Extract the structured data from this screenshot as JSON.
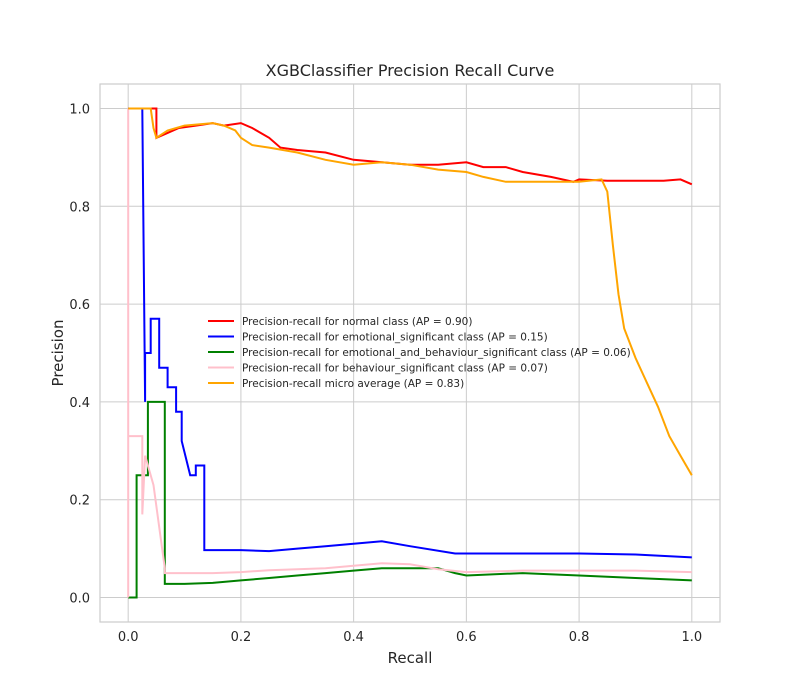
{
  "chart_data": {
    "type": "line",
    "title": "XGBClassifier Precision Recall Curve",
    "xlabel": "Recall",
    "ylabel": "Precision",
    "xlim": [
      -0.05,
      1.05
    ],
    "ylim": [
      -0.05,
      1.05
    ],
    "xticks": [
      "0.0",
      "0.2",
      "0.4",
      "0.6",
      "0.8",
      "1.0"
    ],
    "yticks": [
      "0.0",
      "0.2",
      "0.4",
      "0.6",
      "0.8",
      "1.0"
    ],
    "grid": true,
    "legend_position": "center",
    "series": [
      {
        "name": "Precision-recall for normal class (AP = 0.90)",
        "color": "#ff0000",
        "x": [
          0,
          0.05,
          0.05,
          0.07,
          0.09,
          0.12,
          0.15,
          0.17,
          0.2,
          0.22,
          0.25,
          0.27,
          0.3,
          0.35,
          0.4,
          0.45,
          0.5,
          0.55,
          0.6,
          0.63,
          0.67,
          0.7,
          0.75,
          0.79,
          0.8,
          0.85,
          0.9,
          0.95,
          0.98,
          1.0
        ],
        "y": [
          1.0,
          1.0,
          0.94,
          0.95,
          0.96,
          0.965,
          0.97,
          0.965,
          0.97,
          0.96,
          0.94,
          0.92,
          0.915,
          0.91,
          0.895,
          0.89,
          0.885,
          0.885,
          0.89,
          0.88,
          0.88,
          0.87,
          0.86,
          0.85,
          0.855,
          0.852,
          0.852,
          0.852,
          0.855,
          0.845
        ]
      },
      {
        "name": "Precision-recall for emotional_significant class (AP = 0.15)",
        "color": "#0000ff",
        "x": [
          0,
          0.025,
          0.03,
          0.03,
          0.04,
          0.04,
          0.055,
          0.055,
          0.07,
          0.07,
          0.085,
          0.085,
          0.095,
          0.095,
          0.11,
          0.12,
          0.12,
          0.135,
          0.135,
          0.2,
          0.25,
          0.3,
          0.35,
          0.4,
          0.45,
          0.5,
          0.58,
          0.6,
          0.7,
          0.8,
          0.9,
          1.0
        ],
        "y": [
          1.0,
          1.0,
          0.4,
          0.5,
          0.5,
          0.57,
          0.57,
          0.47,
          0.47,
          0.43,
          0.43,
          0.38,
          0.38,
          0.32,
          0.25,
          0.25,
          0.27,
          0.27,
          0.097,
          0.097,
          0.095,
          0.1,
          0.105,
          0.11,
          0.115,
          0.105,
          0.09,
          0.09,
          0.09,
          0.09,
          0.088,
          0.082
        ]
      },
      {
        "name": "Precision-recall for emotional_and_behaviour_significant class (AP = 0.06)",
        "color": "#008000",
        "x": [
          0,
          0.015,
          0.015,
          0.035,
          0.035,
          0.065,
          0.065,
          0.1,
          0.15,
          0.2,
          0.25,
          0.3,
          0.35,
          0.4,
          0.45,
          0.5,
          0.55,
          0.58,
          0.6,
          0.7,
          0.8,
          0.9,
          1.0
        ],
        "y": [
          0.0,
          0.0,
          0.25,
          0.25,
          0.4,
          0.4,
          0.028,
          0.028,
          0.03,
          0.035,
          0.04,
          0.045,
          0.05,
          0.055,
          0.06,
          0.06,
          0.06,
          0.05,
          0.045,
          0.05,
          0.045,
          0.04,
          0.035
        ]
      },
      {
        "name": "Precision-recall for behaviour_significant class (AP = 0.07)",
        "color": "#ffc0cb",
        "x": [
          0,
          0.0,
          0.0,
          0.025,
          0.025,
          0.03,
          0.03,
          0.045,
          0.045,
          0.065,
          0.065,
          0.1,
          0.15,
          0.2,
          0.25,
          0.3,
          0.35,
          0.4,
          0.45,
          0.5,
          0.55,
          0.6,
          0.7,
          0.8,
          0.9,
          1.0
        ],
        "y": [
          1.0,
          0.0,
          0.33,
          0.33,
          0.17,
          0.29,
          0.29,
          0.23,
          0.23,
          0.06,
          0.05,
          0.05,
          0.05,
          0.052,
          0.056,
          0.058,
          0.06,
          0.065,
          0.07,
          0.068,
          0.058,
          0.052,
          0.055,
          0.055,
          0.055,
          0.052
        ]
      },
      {
        "name": "Precision-recall micro average (AP = 0.83)",
        "color": "#ffa500",
        "x": [
          0,
          0.04,
          0.045,
          0.05,
          0.07,
          0.1,
          0.15,
          0.17,
          0.19,
          0.2,
          0.22,
          0.25,
          0.3,
          0.35,
          0.4,
          0.45,
          0.5,
          0.55,
          0.6,
          0.63,
          0.67,
          0.7,
          0.75,
          0.8,
          0.84,
          0.85,
          0.86,
          0.87,
          0.88,
          0.9,
          0.92,
          0.94,
          0.96,
          0.98,
          1.0
        ],
        "y": [
          1.0,
          1.0,
          0.96,
          0.94,
          0.955,
          0.965,
          0.97,
          0.965,
          0.955,
          0.94,
          0.925,
          0.92,
          0.91,
          0.895,
          0.885,
          0.89,
          0.885,
          0.875,
          0.87,
          0.86,
          0.85,
          0.85,
          0.85,
          0.85,
          0.855,
          0.83,
          0.72,
          0.62,
          0.55,
          0.49,
          0.44,
          0.39,
          0.33,
          0.29,
          0.25
        ]
      }
    ]
  }
}
